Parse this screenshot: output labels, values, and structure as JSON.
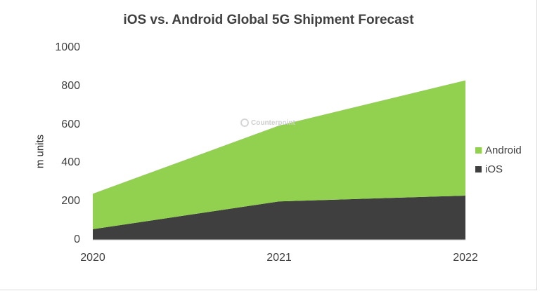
{
  "chart_data": {
    "type": "area",
    "stacked": true,
    "title": "iOS vs. Android Global 5G Shipment Forecast",
    "xlabel": "",
    "ylabel": "m units",
    "categories": [
      "2020",
      "2021",
      "2022"
    ],
    "yticks": [
      "0",
      "200",
      "400",
      "600",
      "800",
      "1000"
    ],
    "ylim": [
      0,
      1000
    ],
    "series": [
      {
        "name": "iOS",
        "values": [
          55,
          200,
          230
        ],
        "color": "#3f3f3f"
      },
      {
        "name": "Android",
        "values": [
          185,
          395,
          600
        ],
        "color": "#92d050"
      }
    ],
    "legend": {
      "position": "right",
      "order": [
        "Android",
        "iOS"
      ]
    },
    "grid": false
  },
  "watermark": {
    "text": "Counterpoint",
    "icon": "counterpoint-logo-icon"
  }
}
